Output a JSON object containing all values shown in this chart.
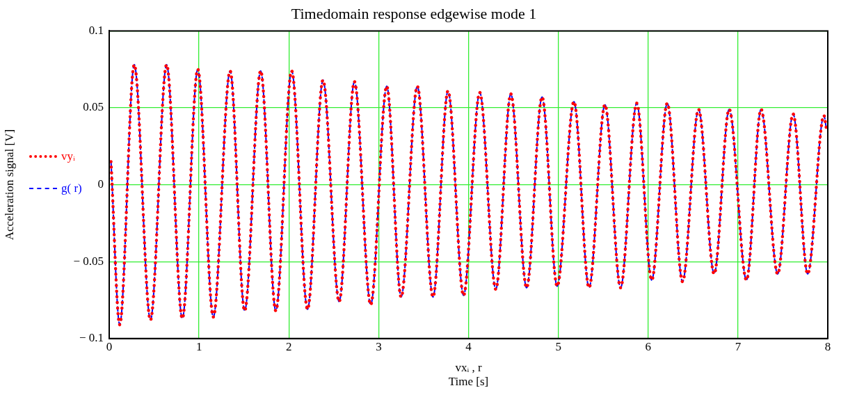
{
  "chart_data": {
    "type": "line",
    "title": "Timedomain response edgewise mode 1",
    "xlabel": "vxᵢ , r\nTime [s]",
    "ylabel": "Acceleration signal [V]",
    "x": [
      0.02,
      0.117,
      0.279,
      0.459,
      0.639,
      0.814,
      0.986,
      1.159,
      1.346,
      1.508,
      1.686,
      1.855,
      2.031,
      2.208,
      2.38,
      2.56,
      2.73,
      2.911,
      3.09,
      3.25,
      3.43,
      3.605,
      3.772,
      3.945,
      4.125,
      4.304,
      4.471,
      4.647,
      4.819,
      4.987,
      5.174,
      5.342,
      5.519,
      5.693,
      5.873,
      6.04,
      6.213,
      6.383,
      6.561,
      6.735,
      6.902,
      7.095,
      7.257,
      7.442,
      7.614,
      7.776,
      7.957,
      7.983
    ],
    "series": [
      {
        "name": "vyᵢ",
        "color": "#ff0000",
        "line_style": "dotted",
        "values": [
          0.015,
          -0.091,
          0.078,
          -0.088,
          0.078,
          -0.087,
          0.075,
          -0.086,
          0.074,
          -0.082,
          0.074,
          -0.082,
          0.074,
          -0.081,
          0.068,
          -0.076,
          0.067,
          -0.078,
          0.064,
          -0.073,
          0.064,
          -0.073,
          0.061,
          -0.072,
          0.06,
          -0.068,
          0.059,
          -0.067,
          0.057,
          -0.066,
          0.054,
          -0.067,
          0.052,
          -0.067,
          0.053,
          -0.062,
          0.053,
          -0.063,
          0.049,
          -0.058,
          0.049,
          -0.062,
          0.049,
          -0.058,
          0.046,
          -0.058,
          0.045,
          0.037
        ]
      },
      {
        "name": "g( r)",
        "color": "#0000ff",
        "line_style": "dashed",
        "values": [
          0.015,
          -0.091,
          0.078,
          -0.088,
          0.078,
          -0.087,
          0.075,
          -0.086,
          0.074,
          -0.082,
          0.074,
          -0.082,
          0.074,
          -0.081,
          0.068,
          -0.076,
          0.067,
          -0.078,
          0.064,
          -0.073,
          0.064,
          -0.073,
          0.061,
          -0.072,
          0.06,
          -0.068,
          0.059,
          -0.067,
          0.057,
          -0.066,
          0.054,
          -0.067,
          0.052,
          -0.067,
          0.053,
          -0.062,
          0.053,
          -0.063,
          0.049,
          -0.058,
          0.049,
          -0.062,
          0.049,
          -0.058,
          0.046,
          -0.058,
          0.045,
          0.037
        ]
      }
    ],
    "xlim": [
      0,
      8
    ],
    "xticks": [
      0,
      1,
      2,
      3,
      4,
      5,
      6,
      7,
      8
    ],
    "ylim": [
      -0.1,
      0.1
    ],
    "yticks": [
      -0.1,
      -0.05,
      0,
      0.05,
      0.1
    ],
    "grid": true,
    "legend": "left",
    "marker": "none"
  }
}
